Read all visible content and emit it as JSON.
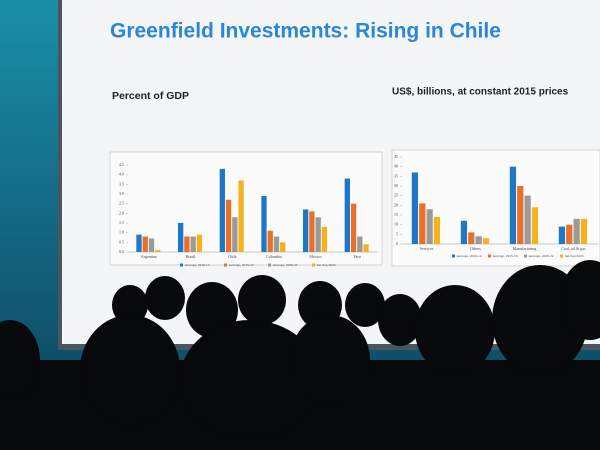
{
  "slide": {
    "title": "Greenfield Investments: Rising in Chile"
  },
  "chart_data": [
    {
      "type": "bar",
      "title": "Percent of GDP",
      "categories": [
        "Argentina",
        "Brazil",
        "Chile",
        "Colombia",
        "Mexico",
        "Peru"
      ],
      "series": [
        {
          "name": "Average, 2010-14",
          "color": "#1f77c8",
          "values": [
            0.9,
            1.5,
            4.3,
            2.9,
            2.2,
            3.8
          ]
        },
        {
          "name": "Average, 2015-19",
          "color": "#e8702a",
          "values": [
            0.8,
            0.8,
            2.7,
            1.1,
            2.1,
            2.5
          ]
        },
        {
          "name": "Average, 2020-22",
          "color": "#9a9a9a",
          "values": [
            0.7,
            0.8,
            1.8,
            0.8,
            1.8,
            0.8
          ]
        },
        {
          "name": "Jan-Sep 2023",
          "color": "#f5b21f",
          "values": [
            0.1,
            0.9,
            3.7,
            0.5,
            1.3,
            0.4
          ]
        }
      ],
      "ylim": [
        0,
        4.5
      ],
      "yticks": [
        {
          "value": 0,
          "label": "0.0"
        },
        0.5,
        {
          "value": 1,
          "label": "1.0"
        },
        1.5,
        {
          "value": 2,
          "label": "2.0"
        },
        2.5,
        {
          "value": 3,
          "label": "3.0"
        },
        3.5,
        {
          "value": 4,
          "label": "4.0"
        },
        4.5
      ],
      "grid": false
    },
    {
      "type": "bar",
      "title": "US$, billions, at constant 2015 prices",
      "categories": [
        "Services",
        "Others",
        "Manufacturing",
        "Coal, oil & gas"
      ],
      "series": [
        {
          "name": "Average, 2010-14",
          "color": "#1f77c8",
          "values": [
            37,
            12,
            40,
            9
          ]
        },
        {
          "name": "Average, 2015-19",
          "color": "#e8702a",
          "values": [
            21,
            6,
            30,
            10
          ]
        },
        {
          "name": "Average, 2020-22",
          "color": "#9a9a9a",
          "values": [
            18,
            4,
            25,
            13
          ]
        },
        {
          "name": "Jan-Sep 2023",
          "color": "#f5b21f",
          "values": [
            14,
            3,
            19,
            13
          ]
        }
      ],
      "ylim": [
        0,
        45
      ],
      "yticks": [
        0,
        5,
        10,
        15,
        20,
        25,
        30,
        35,
        40,
        45
      ],
      "grid": false
    }
  ]
}
